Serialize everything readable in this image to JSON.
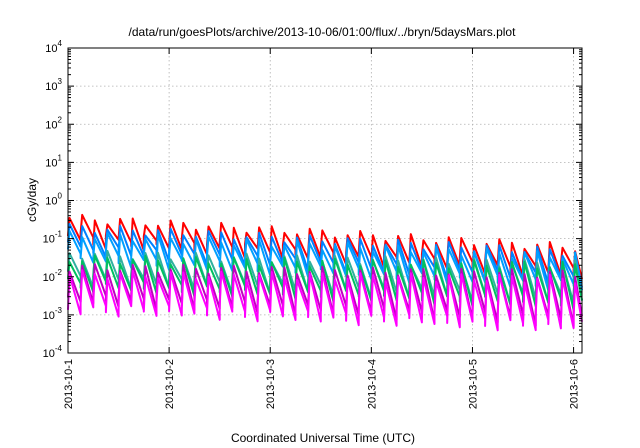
{
  "chart_data": {
    "type": "line",
    "title": "/data/run/goesPlots/archive/2013-10-06/01:00/flux/../bryn/5daysMars.plot",
    "xlabel": "Coordinated Universal Time (UTC)",
    "ylabel": "cGy/day",
    "y_scale": "log",
    "ylim": [
      0.0001,
      10000
    ],
    "xlim": [
      "2013-10-01 00:00",
      "2013-10-06 02:00"
    ],
    "grid": true,
    "x_ticks": [
      "2013-10-1",
      "2013-10-2",
      "2013-10-3",
      "2013-10-4",
      "2013-10-5",
      "2013-10-6"
    ],
    "y_ticks": [
      {
        "base": "10",
        "exp": "-4",
        "value": 0.0001
      },
      {
        "base": "10",
        "exp": "-3",
        "value": 0.001
      },
      {
        "base": "10",
        "exp": "-2",
        "value": 0.01
      },
      {
        "base": "10",
        "exp": "-1",
        "value": 0.1
      },
      {
        "base": "10",
        "exp": "0",
        "value": 1
      },
      {
        "base": "10",
        "exp": "1",
        "value": 10
      },
      {
        "base": "10",
        "exp": "2",
        "value": 100
      },
      {
        "base": "10",
        "exp": "3",
        "value": 1000
      },
      {
        "base": "10",
        "exp": "4",
        "value": 10000
      }
    ],
    "sawtooth_period_hours": 3,
    "series": [
      {
        "color": "#ff0000",
        "peak_start": 0.35,
        "peak_end": 0.06,
        "trough_start": 0.09,
        "trough_end": 0.012
      },
      {
        "color": "#0080ff",
        "peak_start": 0.2,
        "peak_end": 0.045,
        "trough_start": 0.05,
        "trough_end": 0.008
      },
      {
        "color": "#00a0ff",
        "peak_start": 0.13,
        "peak_end": 0.035,
        "trough_start": 0.03,
        "trough_end": 0.006
      },
      {
        "color": "#30b0a0",
        "peak_start": 0.04,
        "peak_end": 0.022,
        "trough_start": 0.008,
        "trough_end": 0.0025
      },
      {
        "color": "#00c060",
        "peak_start": 0.03,
        "peak_end": 0.02,
        "trough_start": 0.006,
        "trough_end": 0.002
      },
      {
        "color": "#c000c0",
        "peak_start": 0.018,
        "peak_end": 0.012,
        "trough_start": 0.0025,
        "trough_end": 0.0007
      },
      {
        "color": "#ff00ff",
        "peak_start": 0.012,
        "peak_end": 0.009,
        "trough_start": 0.0015,
        "trough_end": 0.0005
      }
    ]
  }
}
